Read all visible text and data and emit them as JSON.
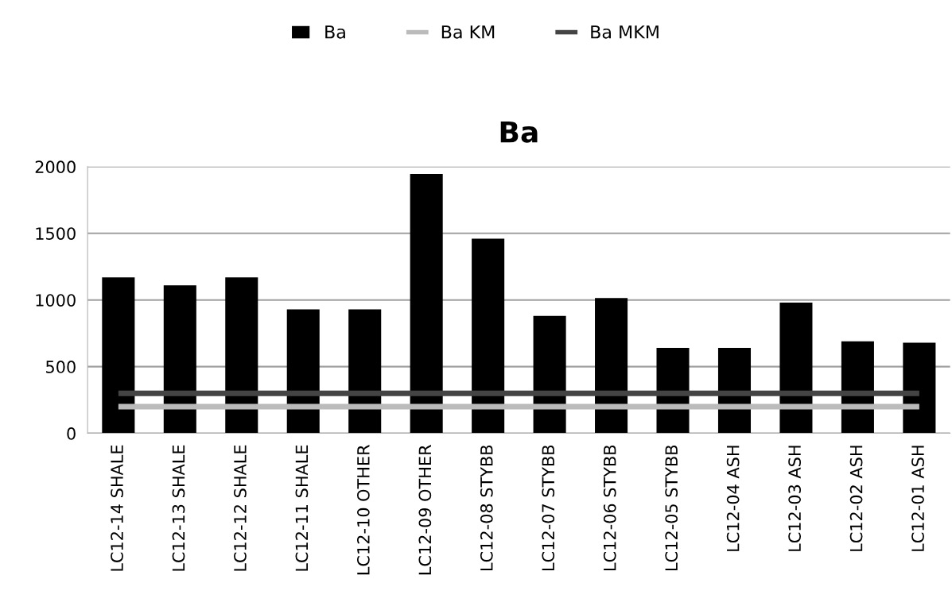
{
  "chart_data": {
    "type": "bar",
    "title": "Ba",
    "categories": [
      "LC12-14 SHALE",
      "LC12-13 SHALE",
      "LC12-12 SHALE",
      "LC12-11 SHALE",
      "LC12-10 OTHER",
      "LC12-09 OTHER",
      "LC12-08 STYBB",
      "LC12-07 STYBB",
      "LC12-06 STYBB",
      "LC12-05 STYBB",
      "LC12-04 ASH",
      "LC12-03 ASH",
      "LC12-02 ASH",
      "LC12-01 ASH"
    ],
    "series": [
      {
        "name": "Ba",
        "color": "#000000",
        "values": [
          1170,
          1110,
          1170,
          930,
          930,
          1945,
          1460,
          880,
          1015,
          640,
          640,
          980,
          690,
          680
        ]
      },
      {
        "name": "Ba KM",
        "type": "line",
        "color": "#bbbbbb",
        "values": [
          200,
          200,
          200,
          200,
          200,
          200,
          200,
          200,
          200,
          200,
          200,
          200,
          200,
          200
        ]
      },
      {
        "name": "Ba MKM",
        "type": "line",
        "color": "#444444",
        "values": [
          300,
          300,
          300,
          300,
          300,
          300,
          300,
          300,
          300,
          300,
          300,
          300,
          300,
          300
        ]
      }
    ],
    "ylim": [
      0,
      2000
    ],
    "yticks": [
      0,
      500,
      1000,
      1500,
      2000
    ],
    "grid": "y",
    "legend": "top"
  }
}
